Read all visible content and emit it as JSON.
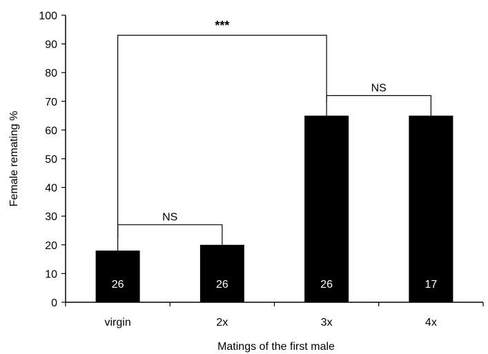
{
  "chart_data": {
    "type": "bar",
    "title": "",
    "xlabel": "Matings of the first male",
    "ylabel": "Female remating %",
    "ylim": [
      0,
      100
    ],
    "yticks": [
      0,
      10,
      20,
      30,
      40,
      50,
      60,
      70,
      80,
      90,
      100
    ],
    "categories": [
      "virgin",
      "2x",
      "3x",
      "4x"
    ],
    "values": [
      18,
      20,
      65,
      65
    ],
    "sample_sizes": [
      "26",
      "26",
      "26",
      "17"
    ],
    "bar_color": "#000000",
    "sample_label_color": "#ffffff",
    "grid": false,
    "legend": "none",
    "annotations": [
      {
        "type": "bracket",
        "from": "virgin",
        "to": "2x",
        "level": 27,
        "label": "NS"
      },
      {
        "type": "bracket",
        "from": "3x",
        "to": "4x",
        "level": 72,
        "label": "NS"
      },
      {
        "type": "bracket",
        "from": "virgin",
        "to": "3x",
        "level": 93,
        "label": "***"
      }
    ]
  }
}
